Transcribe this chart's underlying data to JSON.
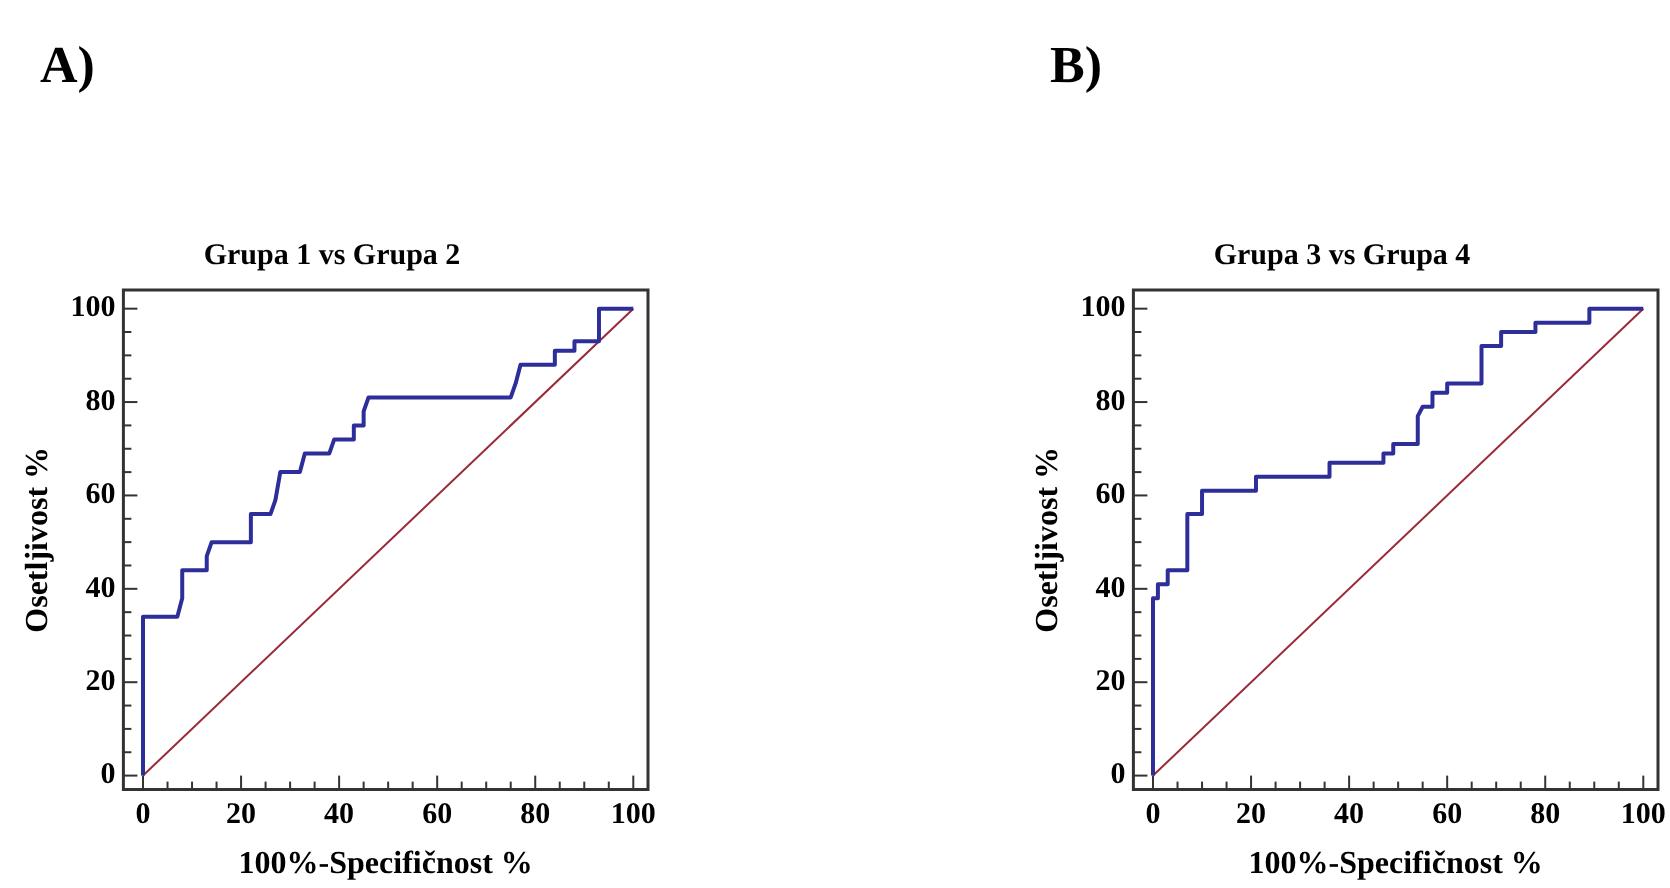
{
  "chart_data": [
    {
      "type": "line",
      "title": "Grupa 1 vs Grupa 2",
      "xlabel": "100%-Specifičnost %",
      "ylabel": "Osetljivost %",
      "annotations": [
        "A)"
      ],
      "marker": "none",
      "grid": false,
      "legend": false,
      "series": [
        {
          "color": "#2e2e9a",
          "x": [
            0,
            0,
            7,
            8,
            8,
            13,
            13,
            14,
            22,
            22,
            26,
            27,
            28,
            32,
            33,
            38,
            39,
            43,
            43,
            45,
            45,
            46,
            75,
            76,
            77,
            84,
            84,
            88,
            88,
            93,
            93,
            100
          ],
          "values": [
            0,
            34,
            34,
            38,
            44,
            44,
            47,
            50,
            50,
            56,
            56,
            59,
            65,
            65,
            69,
            69,
            72,
            72,
            75,
            75,
            78,
            81,
            81,
            84,
            88,
            88,
            91,
            91,
            93,
            93,
            100,
            100
          ]
        },
        {
          "color": "#9a2a3a",
          "x": [
            0,
            100
          ],
          "values": [
            0,
            100
          ]
        }
      ],
      "xlim": [
        -4,
        103
      ],
      "ylim": [
        -3,
        104
      ],
      "xticks": [
        0,
        {
          "value": 5,
          "label": null
        },
        {
          "value": 10,
          "label": null
        },
        {
          "value": 15,
          "label": null
        },
        20,
        {
          "value": 25,
          "label": null
        },
        {
          "value": 30,
          "label": null
        },
        {
          "value": 35,
          "label": null
        },
        40,
        {
          "value": 45,
          "label": null
        },
        {
          "value": 50,
          "label": null
        },
        {
          "value": 55,
          "label": null
        },
        60,
        {
          "value": 65,
          "label": null
        },
        {
          "value": 70,
          "label": null
        },
        {
          "value": 75,
          "label": null
        },
        80,
        {
          "value": 85,
          "label": null
        },
        {
          "value": 90,
          "label": null
        },
        {
          "value": 95,
          "label": null
        },
        100
      ],
      "yticks": [
        0,
        {
          "value": 5,
          "label": null
        },
        {
          "value": 10,
          "label": null
        },
        {
          "value": 15,
          "label": null
        },
        20,
        {
          "value": 25,
          "label": null
        },
        {
          "value": 30,
          "label": null
        },
        {
          "value": 35,
          "label": null
        },
        40,
        {
          "value": 45,
          "label": null
        },
        {
          "value": 50,
          "label": null
        },
        {
          "value": 55,
          "label": null
        },
        60,
        {
          "value": 65,
          "label": null
        },
        {
          "value": 70,
          "label": null
        },
        {
          "value": 75,
          "label": null
        },
        80,
        {
          "value": 85,
          "label": null
        },
        {
          "value": 90,
          "label": null
        },
        {
          "value": 95,
          "label": null
        },
        100
      ]
    },
    {
      "type": "line",
      "title": "Grupa 3 vs Grupa 4",
      "xlabel": "100%-Specifičnost %",
      "ylabel": "Osetljivost %",
      "annotations": [
        "B)"
      ],
      "marker": "none",
      "grid": false,
      "legend": false,
      "series": [
        {
          "color": "#2e2e9a",
          "x": [
            0,
            0,
            1,
            1,
            3,
            3,
            7,
            7,
            10,
            10,
            21,
            21,
            36,
            36,
            47,
            47,
            49,
            49,
            54,
            54,
            55,
            57,
            57,
            60,
            60,
            67,
            67,
            71,
            71,
            78,
            78,
            89,
            89,
            100
          ],
          "values": [
            0,
            38,
            38,
            41,
            41,
            44,
            44,
            56,
            56,
            61,
            61,
            64,
            64,
            67,
            67,
            69,
            69,
            71,
            71,
            77,
            79,
            79,
            82,
            82,
            84,
            84,
            92,
            92,
            95,
            95,
            97,
            97,
            100,
            100
          ]
        },
        {
          "color": "#9a2a3a",
          "x": [
            0,
            100
          ],
          "values": [
            0,
            100
          ]
        }
      ],
      "xlim": [
        -4,
        103
      ],
      "ylim": [
        -3,
        104
      ],
      "xticks": [
        0,
        {
          "value": 5,
          "label": null
        },
        {
          "value": 10,
          "label": null
        },
        {
          "value": 15,
          "label": null
        },
        20,
        {
          "value": 25,
          "label": null
        },
        {
          "value": 30,
          "label": null
        },
        {
          "value": 35,
          "label": null
        },
        40,
        {
          "value": 45,
          "label": null
        },
        {
          "value": 50,
          "label": null
        },
        {
          "value": 55,
          "label": null
        },
        60,
        {
          "value": 65,
          "label": null
        },
        {
          "value": 70,
          "label": null
        },
        {
          "value": 75,
          "label": null
        },
        80,
        {
          "value": 85,
          "label": null
        },
        {
          "value": 90,
          "label": null
        },
        {
          "value": 95,
          "label": null
        },
        100
      ],
      "yticks": [
        0,
        {
          "value": 5,
          "label": null
        },
        {
          "value": 10,
          "label": null
        },
        {
          "value": 15,
          "label": null
        },
        20,
        {
          "value": 25,
          "label": null
        },
        {
          "value": 30,
          "label": null
        },
        {
          "value": 35,
          "label": null
        },
        40,
        {
          "value": 45,
          "label": null
        },
        {
          "value": 50,
          "label": null
        },
        {
          "value": 55,
          "label": null
        },
        60,
        {
          "value": 65,
          "label": null
        },
        {
          "value": 70,
          "label": null
        },
        {
          "value": 75,
          "label": null
        },
        80,
        {
          "value": 85,
          "label": null
        },
        {
          "value": 90,
          "label": null
        },
        {
          "value": 95,
          "label": null
        },
        100
      ]
    }
  ]
}
